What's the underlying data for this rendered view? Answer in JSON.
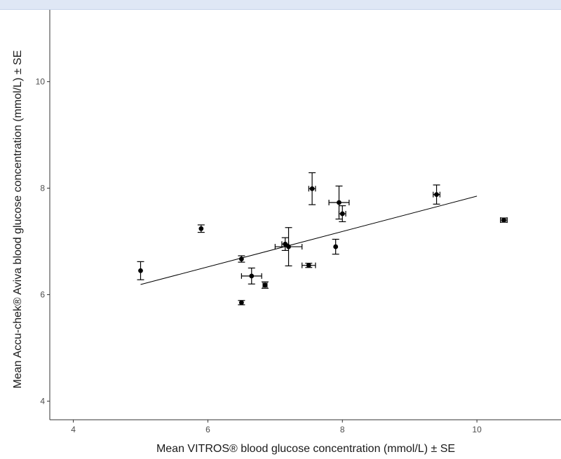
{
  "chart_data": {
    "type": "scatter",
    "xlabel": "Mean VITROS® blood glucose concentration (mmol/L) ± SE",
    "ylabel": "Mean Accu-chek® Aviva blood glucose concentration (mmol/L) ± SE",
    "xlim": [
      3.65,
      11.25
    ],
    "ylim": [
      3.65,
      11.35
    ],
    "xticks": [
      4,
      6,
      8,
      10
    ],
    "yticks": [
      4,
      6,
      8,
      10
    ],
    "grid": false,
    "legend": "none",
    "points": [
      {
        "x": 5.0,
        "y": 6.45,
        "xerr": 0.0,
        "yerr": 0.17
      },
      {
        "x": 5.9,
        "y": 7.24,
        "xerr": 0.0,
        "yerr": 0.07
      },
      {
        "x": 6.5,
        "y": 6.67,
        "xerr": 0.0,
        "yerr": 0.06
      },
      {
        "x": 6.5,
        "y": 5.85,
        "xerr": 0.0,
        "yerr": 0.04
      },
      {
        "x": 6.65,
        "y": 6.35,
        "xerr": 0.15,
        "yerr": 0.15
      },
      {
        "x": 6.85,
        "y": 6.18,
        "xerr": 0.03,
        "yerr": 0.06
      },
      {
        "x": 7.15,
        "y": 6.95,
        "xerr": 0.05,
        "yerr": 0.12
      },
      {
        "x": 7.2,
        "y": 6.9,
        "xerr": 0.2,
        "yerr": 0.36
      },
      {
        "x": 7.5,
        "y": 6.55,
        "xerr": 0.1,
        "yerr": 0.04
      },
      {
        "x": 7.55,
        "y": 7.99,
        "xerr": 0.05,
        "yerr": 0.3
      },
      {
        "x": 7.9,
        "y": 6.9,
        "xerr": 0.0,
        "yerr": 0.14
      },
      {
        "x": 7.95,
        "y": 7.73,
        "xerr": 0.15,
        "yerr": 0.31
      },
      {
        "x": 8.0,
        "y": 7.52,
        "xerr": 0.05,
        "yerr": 0.15
      },
      {
        "x": 9.4,
        "y": 7.88,
        "xerr": 0.05,
        "yerr": 0.18
      },
      {
        "x": 10.4,
        "y": 7.4,
        "xerr": 0.05,
        "yerr": 0.04
      }
    ],
    "fit_line": {
      "x": [
        5.0,
        10.0
      ],
      "y": [
        6.19,
        7.85
      ]
    }
  },
  "colors": {
    "points": "#000000",
    "axis": "#333333",
    "top_border": "#dfe7f5"
  }
}
